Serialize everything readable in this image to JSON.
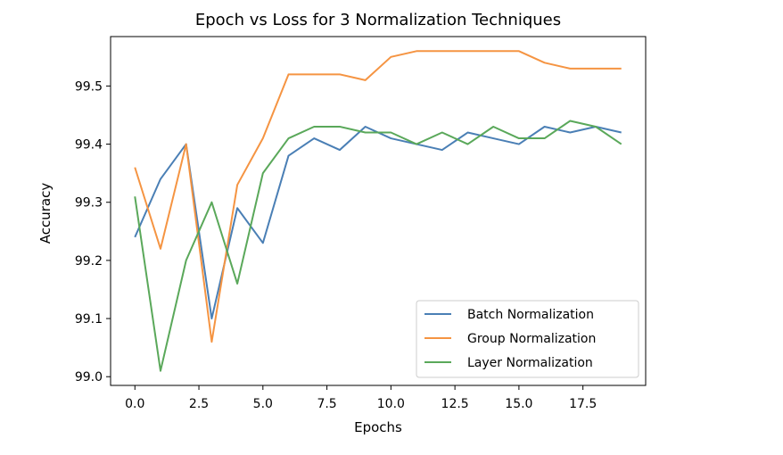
{
  "chart_data": {
    "type": "line",
    "title": "Epoch vs Loss for 3 Normalization Techniques",
    "xlabel": "Epochs",
    "ylabel": "Accuracy",
    "xlim": [
      -0.95,
      19.95
    ],
    "ylim": [
      98.985,
      99.585
    ],
    "xticks": [
      0.0,
      2.5,
      5.0,
      7.5,
      10.0,
      12.5,
      15.0,
      17.5
    ],
    "xtick_labels": [
      "0.0",
      "2.5",
      "5.0",
      "7.5",
      "10.0",
      "12.5",
      "15.0",
      "17.5"
    ],
    "yticks": [
      99.0,
      99.1,
      99.2,
      99.3,
      99.4,
      99.5
    ],
    "ytick_labels": [
      "99.0",
      "99.1",
      "99.2",
      "99.3",
      "99.4",
      "99.5"
    ],
    "grid": false,
    "legend_position": "lower-right",
    "x": [
      0,
      1,
      2,
      3,
      4,
      5,
      6,
      7,
      8,
      9,
      10,
      11,
      12,
      13,
      14,
      15,
      16,
      17,
      18,
      19
    ],
    "series": [
      {
        "name": "Batch Normalization",
        "color": "#4a7fb5",
        "values": [
          99.24,
          99.34,
          99.4,
          99.1,
          99.29,
          99.23,
          99.38,
          99.41,
          99.39,
          99.43,
          99.41,
          99.4,
          99.39,
          99.42,
          99.41,
          99.4,
          99.43,
          99.42,
          99.43,
          99.42
        ]
      },
      {
        "name": "Group Normalization",
        "color": "#f59442",
        "values": [
          99.36,
          99.22,
          99.4,
          99.06,
          99.33,
          99.41,
          99.52,
          99.52,
          99.52,
          99.51,
          99.55,
          99.56,
          99.56,
          99.56,
          99.56,
          99.56,
          99.54,
          99.53,
          99.53,
          99.53
        ]
      },
      {
        "name": "Layer Normalization",
        "color": "#5aa85a",
        "values": [
          99.31,
          99.01,
          99.2,
          99.3,
          99.16,
          99.35,
          99.41,
          99.43,
          99.43,
          99.42,
          99.42,
          99.4,
          99.42,
          99.4,
          99.43,
          99.41,
          99.41,
          99.44,
          99.43,
          99.4
        ]
      }
    ]
  }
}
